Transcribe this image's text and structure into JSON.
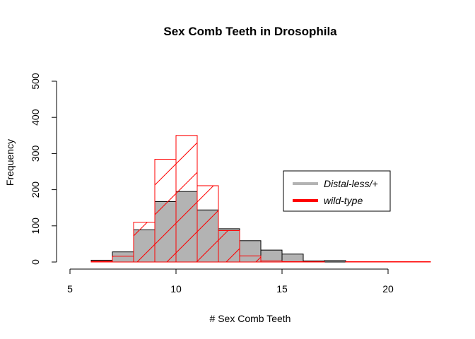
{
  "chart_data": {
    "type": "histogram",
    "title": "Sex Comb Teeth in Drosophila",
    "xlabel": "# Sex Comb Teeth",
    "ylabel": "Frequency",
    "xlim": [
      5,
      22
    ],
    "ylim": [
      0,
      500
    ],
    "x_ticks": [
      5,
      10,
      15,
      20
    ],
    "y_ticks": [
      0,
      100,
      200,
      300,
      400,
      500
    ],
    "bin_edges": [
      6,
      7,
      8,
      9,
      10,
      11,
      12,
      13,
      14,
      15,
      16,
      17,
      18,
      19,
      20,
      21,
      22
    ],
    "series": [
      {
        "name": "Distal-less/+",
        "color": "#b3b3b3",
        "border": "#000000",
        "fill": "solid",
        "values": [
          5,
          28,
          89,
          167,
          195,
          144,
          92,
          59,
          33,
          22,
          3,
          4,
          0,
          0,
          0,
          0
        ]
      },
      {
        "name": "wild-type",
        "color": "#ff0000",
        "fill": "hatched",
        "values": [
          2,
          16,
          110,
          284,
          350,
          211,
          87,
          17,
          3,
          1,
          1,
          0,
          1,
          1,
          1,
          1
        ]
      }
    ],
    "legend": {
      "position": "right",
      "entries": [
        "Distal-less/+",
        "wild-type"
      ]
    },
    "grid": false
  }
}
